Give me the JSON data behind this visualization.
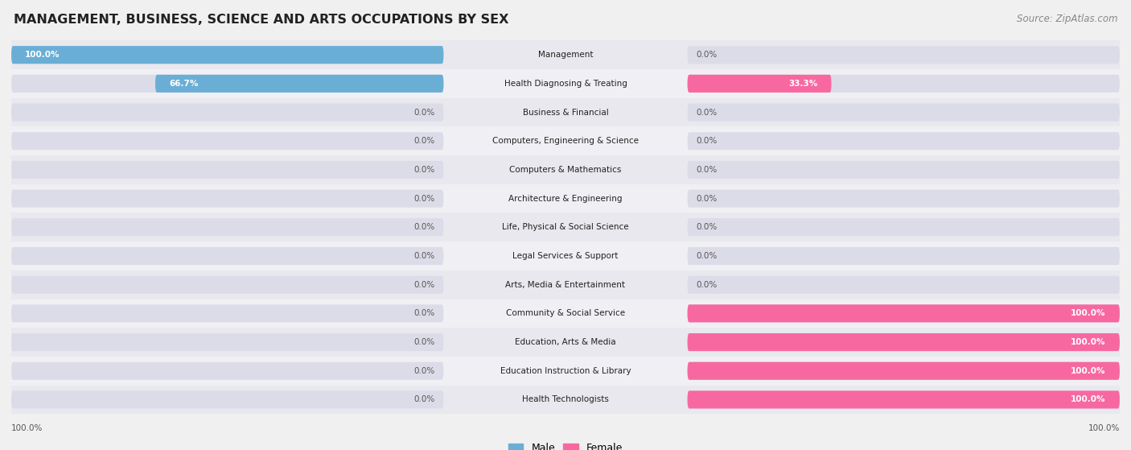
{
  "title": "MANAGEMENT, BUSINESS, SCIENCE AND ARTS OCCUPATIONS BY SEX",
  "source": "Source: ZipAtlas.com",
  "categories": [
    "Management",
    "Health Diagnosing & Treating",
    "Business & Financial",
    "Computers, Engineering & Science",
    "Computers & Mathematics",
    "Architecture & Engineering",
    "Life, Physical & Social Science",
    "Legal Services & Support",
    "Arts, Media & Entertainment",
    "Community & Social Service",
    "Education, Arts & Media",
    "Education Instruction & Library",
    "Health Technologists"
  ],
  "male": [
    100.0,
    66.7,
    0.0,
    0.0,
    0.0,
    0.0,
    0.0,
    0.0,
    0.0,
    0.0,
    0.0,
    0.0,
    0.0
  ],
  "female": [
    0.0,
    33.3,
    0.0,
    0.0,
    0.0,
    0.0,
    0.0,
    0.0,
    0.0,
    100.0,
    100.0,
    100.0,
    100.0
  ],
  "male_color": "#6aaed6",
  "female_color": "#f768a1",
  "background_color": "#f0f0f0",
  "row_bg_odd": "#e8e8ee",
  "row_bg_even": "#f0f0f4",
  "bar_bg_color": "#dcdce8",
  "title_fontsize": 11.5,
  "source_fontsize": 8.5,
  "label_fontsize": 7.5,
  "bar_label_fontsize": 7.5,
  "legend_fontsize": 9
}
